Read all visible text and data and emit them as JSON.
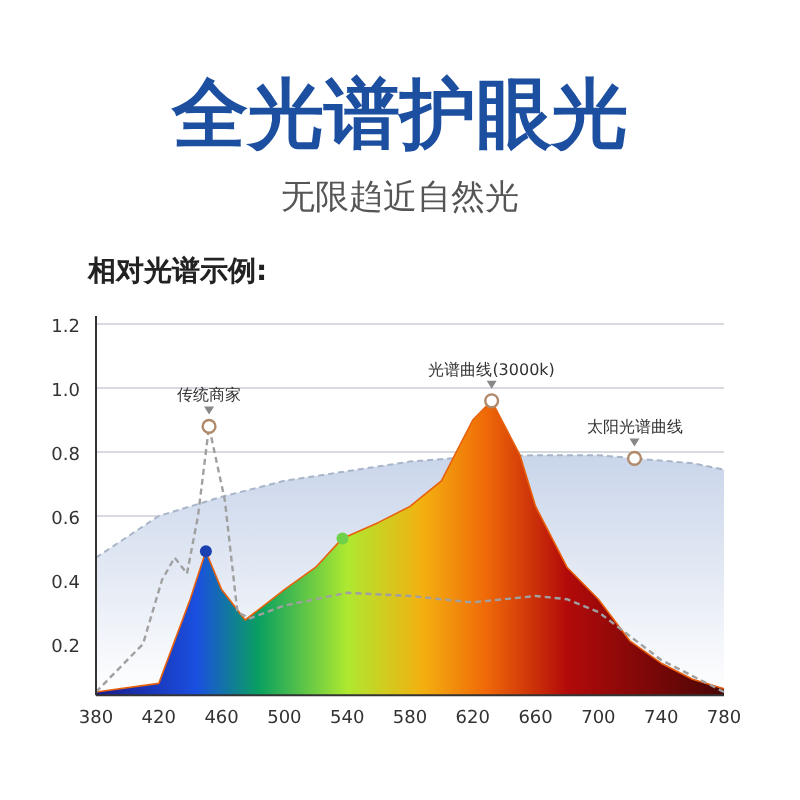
{
  "chart_data": {
    "type": "area",
    "title": "全光谱护眼光",
    "subtitle": "无限趋近自然光",
    "annotations": [
      "相对光谱示例:",
      {
        "text": "传统商家",
        "x": 452,
        "y": 0.88
      },
      {
        "text": "光谱曲线(3000k)",
        "x": 632,
        "y": 0.96
      },
      {
        "text": "太阳光谱曲线",
        "x": 723,
        "y": 0.78
      }
    ],
    "xlim": [
      380,
      780
    ],
    "xticks": [
      380,
      420,
      460,
      500,
      540,
      580,
      620,
      660,
      700,
      740,
      780
    ],
    "ylim": [
      0.04,
      1.2
    ],
    "yticks": [
      0.2,
      0.4,
      0.6,
      0.8,
      {
        "value": 1.0,
        "label": "1.0"
      },
      1.2
    ],
    "grid": "y",
    "series": [
      {
        "color": "#c9d5ea",
        "line_style": "dashed",
        "x": [
          380,
          420,
          460,
          500,
          540,
          580,
          620,
          660,
          700,
          723,
          760,
          780
        ],
        "values": [
          0.47,
          0.6,
          0.66,
          0.71,
          0.74,
          0.77,
          0.785,
          0.79,
          0.79,
          0.78,
          0.765,
          0.745
        ]
      },
      {
        "type": "line",
        "color": "#a0a0a0",
        "line_style": "dashed",
        "x": [
          380,
          410,
          422,
          430,
          438,
          445,
          452,
          462,
          470,
          478,
          500,
          540,
          580,
          620,
          660,
          680,
          700,
          740,
          780
        ],
        "values": [
          0.05,
          0.2,
          0.4,
          0.47,
          0.42,
          0.6,
          0.88,
          0.65,
          0.3,
          0.28,
          0.32,
          0.36,
          0.35,
          0.33,
          0.35,
          0.34,
          0.3,
          0.15,
          0.05
        ]
      },
      {
        "color": "#e8600c",
        "x": [
          380,
          420,
          440,
          450,
          460,
          475,
          500,
          520,
          537,
          560,
          580,
          600,
          620,
          632,
          650,
          660,
          680,
          700,
          720,
          740,
          760,
          780
        ],
        "values": [
          0.05,
          0.077,
          0.34,
          0.49,
          0.37,
          0.275,
          0.37,
          0.44,
          0.53,
          0.58,
          0.63,
          0.71,
          0.9,
          0.96,
          0.79,
          0.63,
          0.44,
          0.34,
          0.21,
          0.14,
          0.09,
          0.06
        ]
      },
      {
        "type": "scatter",
        "marker": "circle",
        "x": [
          450,
          537
        ],
        "values": [
          0.49,
          0.53
        ],
        "colors": [
          "#1a3fb0",
          "#6fd04a"
        ]
      }
    ]
  }
}
